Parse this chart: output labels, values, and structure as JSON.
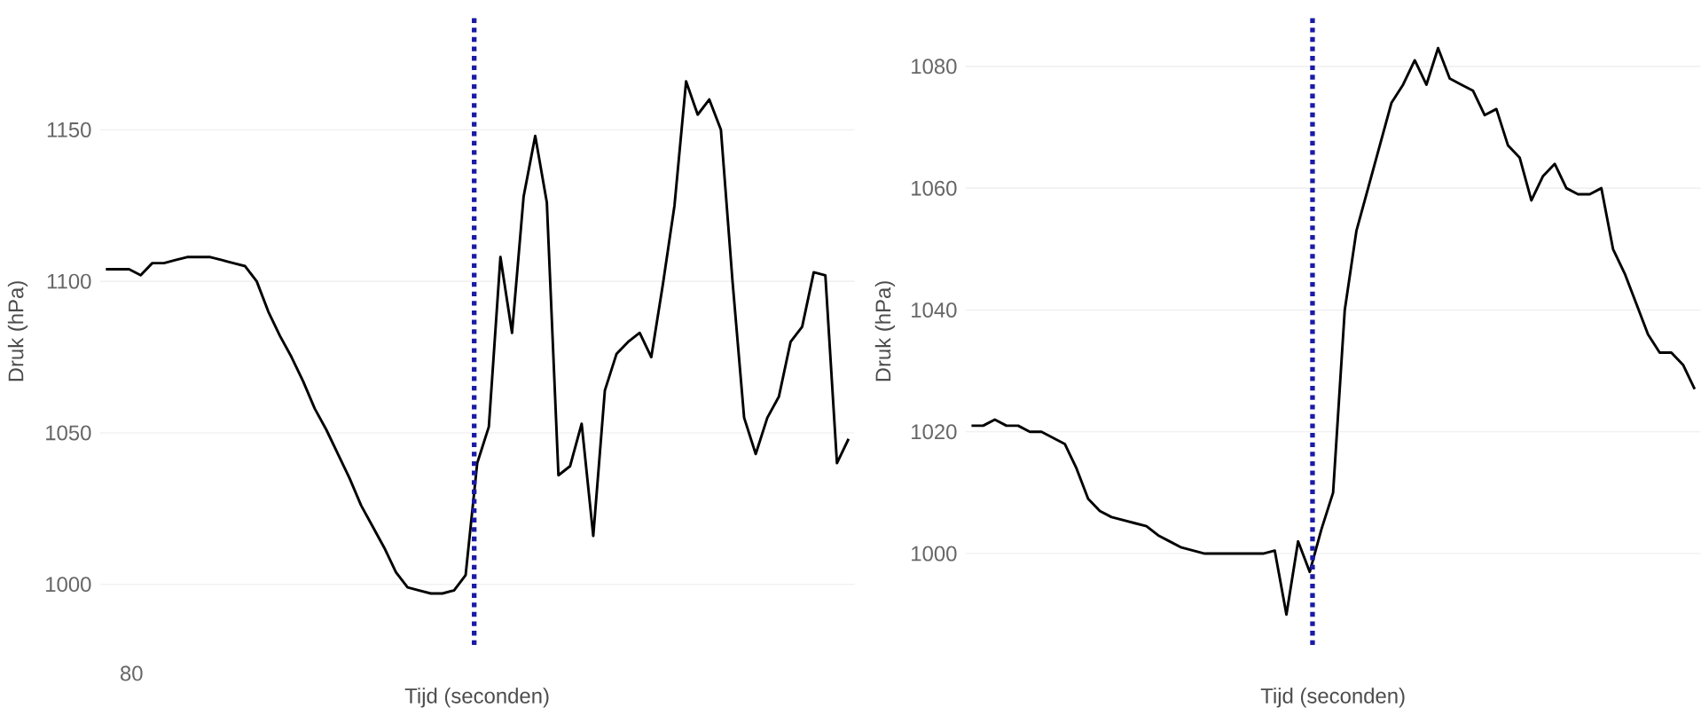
{
  "chart_data": [
    {
      "type": "line",
      "xlabel": "Tijd (seconden)",
      "ylabel": "Druk (hPa)",
      "tick_labels": "y",
      "grid": "y",
      "categories": [
        null,
        null,
        null,
        null,
        null,
        null,
        null,
        null,
        null,
        null,
        null,
        null,
        null,
        null,
        null,
        null,
        null,
        null,
        null,
        null,
        null,
        null,
        null,
        null,
        null,
        null,
        null,
        null,
        null,
        null,
        null,
        null,
        null,
        null,
        null,
        null,
        null,
        null,
        null,
        null,
        null,
        null,
        null,
        null,
        null,
        null,
        null,
        null,
        null,
        null,
        null,
        null,
        null,
        null,
        null,
        null,
        null,
        null,
        null,
        null,
        null,
        null,
        null,
        null,
        null
      ],
      "series": [
        {
          "color": "#000000",
          "values": [
            1104,
            1104,
            1104,
            1102,
            1106,
            1106,
            1107,
            1108,
            1108,
            1108,
            1107,
            1106,
            1105,
            1100,
            1090,
            1082,
            1075,
            1067,
            1058,
            1051,
            1043,
            1035,
            1026,
            1019,
            1012,
            1004,
            999,
            998,
            997,
            997,
            998,
            1003,
            1040,
            1052,
            1108,
            1083,
            1128,
            1148,
            1126,
            1036,
            1039,
            1053,
            1016,
            1064,
            1076,
            1080,
            1083,
            1075,
            1099,
            1125,
            1166,
            1155,
            1160,
            1150,
            1100,
            1055,
            1043,
            1055,
            1062,
            1080,
            1085,
            1103,
            1102,
            1040,
            1048
          ]
        }
      ],
      "ylim": [
        980,
        1187
      ],
      "yticks": [
        1000,
        1050,
        1100,
        1150
      ],
      "annotations": [
        "80"
      ]
    },
    {
      "type": "line",
      "xlabel": "Tijd (seconden)",
      "ylabel": "Druk (hPa)",
      "tick_labels": "y",
      "grid": "y",
      "categories": [
        null,
        null,
        null,
        null,
        null,
        null,
        null,
        null,
        null,
        null,
        null,
        null,
        null,
        null,
        null,
        null,
        null,
        null,
        null,
        null,
        null,
        null,
        null,
        null,
        null,
        null,
        null,
        null,
        null,
        null,
        null,
        null,
        null,
        null,
        null,
        null,
        null,
        null,
        null,
        null,
        null,
        null,
        null,
        null,
        null,
        null,
        null,
        null,
        null,
        null,
        null,
        null,
        null,
        null,
        null,
        null,
        null,
        null,
        null,
        null,
        null,
        null,
        null
      ],
      "series": [
        {
          "color": "#000000",
          "values": [
            1021,
            1021,
            1022,
            1021,
            1021,
            1020,
            1020,
            1019,
            1018,
            1014,
            1009,
            1007,
            1006,
            1005.5,
            1005,
            1004.5,
            1003,
            1002,
            1001,
            1000.5,
            1000,
            1000,
            1000,
            1000,
            1000,
            1000,
            1000.5,
            990,
            1002,
            997,
            1004,
            1010,
            1040,
            1053,
            1060,
            1067,
            1074,
            1077,
            1081,
            1077,
            1083,
            1078,
            1077,
            1076,
            1072,
            1073,
            1067,
            1065,
            1058,
            1062,
            1064,
            1060,
            1059,
            1059,
            1060,
            1050,
            1046,
            1041,
            1036,
            1033,
            1033,
            1031,
            1027
          ]
        }
      ],
      "ylim": [
        985,
        1088
      ],
      "yticks": [
        1000,
        1020,
        1040,
        1060,
        1080
      ]
    }
  ]
}
